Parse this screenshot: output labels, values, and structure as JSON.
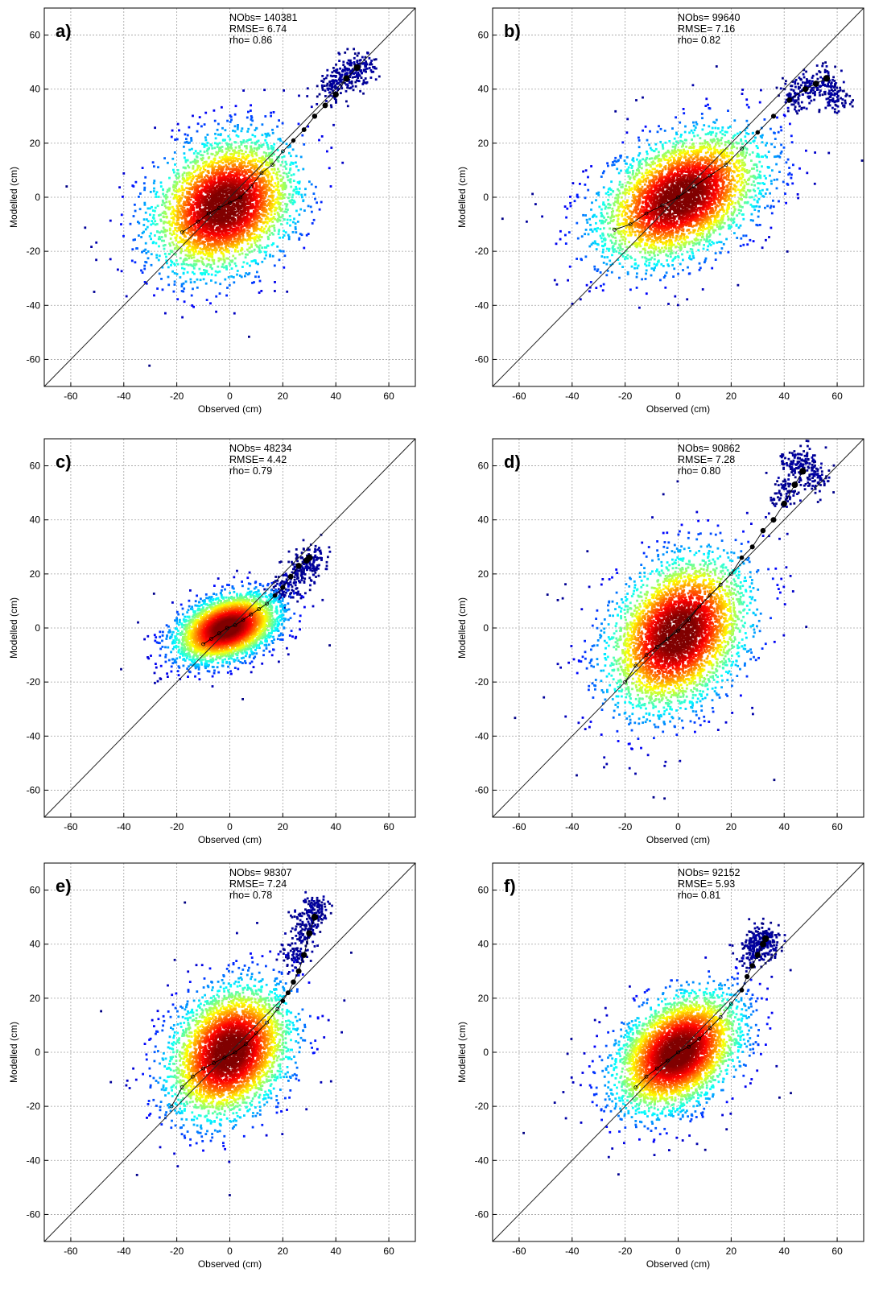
{
  "chart_data": [
    {
      "type": "scatter",
      "panel_label": "a)",
      "xlabel": "Observed (cm)",
      "ylabel": "Modelled (cm)",
      "xlim": [
        -70,
        70
      ],
      "ylim": [
        -70,
        70
      ],
      "xticks": [
        -60,
        -40,
        -20,
        0,
        20,
        40,
        60
      ],
      "yticks": [
        -60,
        -40,
        -20,
        0,
        20,
        40,
        60
      ],
      "grid": true,
      "stats": [
        "NObs= 140381",
        "RMSE= 6.74",
        "rho= 0.86"
      ],
      "cloud": {
        "cx": -2,
        "cy": -3,
        "sx": 13,
        "sy": 10,
        "angle": 36,
        "hx": 0.8,
        "hy": 0.7
      },
      "tail": [
        [
          38,
          40
        ],
        [
          42,
          44
        ],
        [
          46,
          46
        ],
        [
          50,
          48
        ]
      ],
      "binned_means": [
        [
          -18,
          -13
        ],
        [
          -12,
          -9
        ],
        [
          -8,
          -6
        ],
        [
          -4,
          -4
        ],
        [
          0,
          -2
        ],
        [
          4,
          0
        ],
        [
          8,
          4
        ],
        [
          12,
          9
        ],
        [
          16,
          12
        ],
        [
          20,
          17
        ],
        [
          24,
          21
        ],
        [
          28,
          25
        ],
        [
          32,
          30
        ],
        [
          36,
          34
        ],
        [
          40,
          38
        ],
        [
          44,
          44
        ],
        [
          48,
          48
        ]
      ],
      "reference_line": "1:1"
    },
    {
      "type": "scatter",
      "panel_label": "b)",
      "xlabel": "Observed (cm)",
      "ylabel": "Modelled (cm)",
      "xlim": [
        -70,
        70
      ],
      "ylim": [
        -70,
        70
      ],
      "xticks": [
        -60,
        -40,
        -20,
        0,
        20,
        40,
        60
      ],
      "yticks": [
        -60,
        -40,
        -20,
        0,
        20,
        40,
        60
      ],
      "grid": true,
      "stats": [
        "NObs=  99640",
        "RMSE= 7.16",
        "rho= 0.82"
      ],
      "cloud": {
        "cx": 1,
        "cy": 0,
        "sx": 15,
        "sy": 9,
        "angle": 30,
        "hx": 0.8,
        "hy": 0.7
      },
      "tail": [
        [
          44,
          38
        ],
        [
          50,
          40
        ],
        [
          56,
          43
        ],
        [
          60,
          36
        ]
      ],
      "binned_means": [
        [
          -24,
          -12
        ],
        [
          -18,
          -10
        ],
        [
          -12,
          -6
        ],
        [
          -6,
          -3
        ],
        [
          0,
          0
        ],
        [
          6,
          4
        ],
        [
          12,
          8
        ],
        [
          18,
          12
        ],
        [
          24,
          18
        ],
        [
          30,
          24
        ],
        [
          36,
          30
        ],
        [
          42,
          36
        ],
        [
          48,
          40
        ],
        [
          52,
          42
        ],
        [
          56,
          44
        ]
      ],
      "reference_line": "1:1"
    },
    {
      "type": "scatter",
      "panel_label": "c)",
      "xlabel": "Observed (cm)",
      "ylabel": "Modelled (cm)",
      "xlim": [
        -70,
        70
      ],
      "ylim": [
        -70,
        70
      ],
      "xticks": [
        -60,
        -40,
        -20,
        0,
        20,
        40,
        60
      ],
      "yticks": [
        -60,
        -40,
        -20,
        0,
        20,
        40,
        60
      ],
      "grid": true,
      "stats": [
        "NObs=  48234",
        "RMSE= 4.42",
        "rho= 0.79"
      ],
      "cloud": {
        "cx": -1,
        "cy": 0,
        "sx": 9,
        "sy": 5,
        "angle": 20,
        "hx": 0.75,
        "hy": 0.6
      },
      "tail": [
        [
          20,
          14
        ],
        [
          24,
          18
        ],
        [
          28,
          24
        ],
        [
          32,
          24
        ]
      ],
      "binned_means": [
        [
          -10,
          -6
        ],
        [
          -7,
          -4
        ],
        [
          -4,
          -2
        ],
        [
          -1,
          0
        ],
        [
          2,
          1
        ],
        [
          5,
          3
        ],
        [
          8,
          5
        ],
        [
          11,
          7
        ],
        [
          14,
          9
        ],
        [
          17,
          12
        ],
        [
          20,
          15
        ],
        [
          23,
          19
        ],
        [
          26,
          23
        ],
        [
          29,
          25
        ],
        [
          30,
          26
        ]
      ],
      "reference_line": "1:1"
    },
    {
      "type": "scatter",
      "panel_label": "d)",
      "xlabel": "Observed (cm)",
      "ylabel": "Modelled (cm)",
      "xlim": [
        -70,
        70
      ],
      "ylim": [
        -70,
        70
      ],
      "xticks": [
        -60,
        -40,
        -20,
        0,
        20,
        40,
        60
      ],
      "yticks": [
        -60,
        -40,
        -20,
        0,
        20,
        40,
        60
      ],
      "grid": true,
      "stats": [
        "NObs=  90862",
        "RMSE= 7.28",
        "rho= 0.80"
      ],
      "cloud": {
        "cx": 0,
        "cy": -2,
        "sx": 14,
        "sy": 10,
        "angle": 52,
        "hx": 0.8,
        "hy": 0.75
      },
      "tail": [
        [
          40,
          50
        ],
        [
          44,
          60
        ],
        [
          48,
          62
        ],
        [
          52,
          56
        ]
      ],
      "binned_means": [
        [
          -20,
          -20
        ],
        [
          -16,
          -14
        ],
        [
          -12,
          -10
        ],
        [
          -8,
          -7
        ],
        [
          -4,
          -4
        ],
        [
          0,
          -1
        ],
        [
          4,
          3
        ],
        [
          8,
          8
        ],
        [
          12,
          12
        ],
        [
          16,
          16
        ],
        [
          20,
          20
        ],
        [
          24,
          26
        ],
        [
          28,
          30
        ],
        [
          32,
          36
        ],
        [
          36,
          40
        ],
        [
          40,
          46
        ],
        [
          44,
          53
        ],
        [
          47,
          58
        ]
      ],
      "reference_line": "1:1"
    },
    {
      "type": "scatter",
      "panel_label": "e)",
      "xlabel": "Observed (cm)",
      "ylabel": "Modelled (cm)",
      "xlim": [
        -70,
        70
      ],
      "ylim": [
        -70,
        70
      ],
      "xticks": [
        -60,
        -40,
        -20,
        0,
        20,
        40,
        60
      ],
      "yticks": [
        -60,
        -40,
        -20,
        0,
        20,
        40,
        60
      ],
      "grid": true,
      "stats": [
        "NObs=  98307",
        "RMSE= 7.24",
        "rho= 0.78"
      ],
      "cloud": {
        "cx": 0,
        "cy": 0,
        "sx": 12,
        "sy": 9,
        "angle": 52,
        "hx": 0.8,
        "hy": 0.75
      },
      "tail": [
        [
          24,
          36
        ],
        [
          28,
          44
        ],
        [
          30,
          50
        ],
        [
          32,
          52
        ]
      ],
      "binned_means": [
        [
          -22,
          -20
        ],
        [
          -18,
          -13
        ],
        [
          -14,
          -9
        ],
        [
          -10,
          -6
        ],
        [
          -6,
          -4
        ],
        [
          -2,
          -2
        ],
        [
          2,
          0
        ],
        [
          6,
          3
        ],
        [
          10,
          7
        ],
        [
          14,
          11
        ],
        [
          18,
          16
        ],
        [
          20,
          19
        ],
        [
          22,
          22
        ],
        [
          24,
          26
        ],
        [
          26,
          30
        ],
        [
          28,
          36
        ],
        [
          30,
          44
        ],
        [
          32,
          50
        ]
      ],
      "reference_line": "1:1"
    },
    {
      "type": "scatter",
      "panel_label": "f)",
      "xlabel": "Observed (cm)",
      "ylabel": "Modelled (cm)",
      "xlim": [
        -70,
        70
      ],
      "ylim": [
        -70,
        70
      ],
      "xticks": [
        -60,
        -40,
        -20,
        0,
        20,
        40,
        60
      ],
      "yticks": [
        -60,
        -40,
        -20,
        0,
        20,
        40,
        60
      ],
      "grid": true,
      "stats": [
        "NObs=  92152",
        "RMSE= 5.93",
        "rho= 0.81"
      ],
      "cloud": {
        "cx": 0,
        "cy": 0,
        "sx": 12,
        "sy": 8,
        "angle": 40,
        "hx": 0.75,
        "hy": 0.65
      },
      "tail": [
        [
          28,
          36
        ],
        [
          30,
          40
        ],
        [
          32,
          42
        ],
        [
          34,
          40
        ]
      ],
      "binned_means": [
        [
          -16,
          -13
        ],
        [
          -12,
          -9
        ],
        [
          -8,
          -6
        ],
        [
          -4,
          -3
        ],
        [
          0,
          0
        ],
        [
          4,
          2
        ],
        [
          8,
          5
        ],
        [
          12,
          9
        ],
        [
          16,
          13
        ],
        [
          20,
          18
        ],
        [
          24,
          23
        ],
        [
          26,
          28
        ],
        [
          28,
          32
        ],
        [
          30,
          36
        ],
        [
          32,
          40
        ],
        [
          33,
          42
        ]
      ],
      "reference_line": "1:1"
    }
  ]
}
